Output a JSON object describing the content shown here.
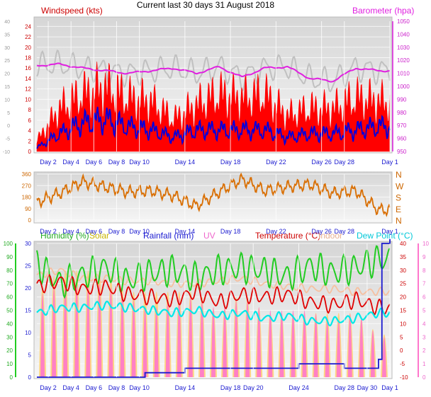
{
  "colors": {
    "wind_avg": "#0000e0",
    "wind_gust": "#ff0000",
    "pressure": "#e020e0",
    "temp_trace": "#c0c0c0",
    "direction": "#d96e00",
    "humidity": "#22cc22",
    "solar": "#e8c800",
    "rainfall": "#1a1ad0",
    "uv": "#ff77cc",
    "temperature": "#e00000",
    "indoor": "#f6c0a0",
    "dewpoint": "#00e8e8",
    "solar_fill": "#ffd070"
  },
  "chart_data": [
    {
      "type": "line",
      "title": "Current last 30 days 31 August 2018",
      "left_label": "Windspeed (kts)",
      "right_label": "Barometer (hpa)",
      "x_ticks": [
        "Day 2",
        "Day 4",
        "Day 6",
        "Day 8",
        "Day 10",
        "Day 14",
        "Day 18",
        "Day 22",
        "Day 26",
        "Day 28",
        "Day 1"
      ],
      "x_tick_days": [
        2,
        4,
        6,
        8,
        10,
        14,
        18,
        22,
        26,
        28,
        32
      ],
      "y_left_outer_ticks": [
        40,
        35,
        30,
        25,
        20,
        15,
        10,
        5,
        0,
        -5,
        -10
      ],
      "y_left_inner_ticks": [
        24,
        22,
        20,
        18,
        16,
        14,
        12,
        10,
        8,
        6,
        4,
        2,
        0
      ],
      "y_right_ticks": [
        1050,
        1040,
        1030,
        1020,
        1010,
        1000,
        990,
        980,
        970,
        960,
        950
      ],
      "ylim_left": [
        0,
        25
      ],
      "ylim_right": [
        950,
        1050
      ],
      "series": [
        {
          "name": "Wind gust",
          "x": [
            1,
            3,
            5,
            7,
            9,
            11,
            13,
            15,
            17,
            19,
            21,
            23,
            25,
            27,
            29,
            31
          ],
          "values": [
            3,
            12,
            16,
            18,
            15,
            14,
            9,
            13,
            16,
            15,
            16,
            10,
            12,
            12,
            15,
            14
          ]
        },
        {
          "name": "Wind average",
          "x": [
            1,
            3,
            5,
            7,
            9,
            11,
            13,
            15,
            17,
            19,
            21,
            23,
            25,
            27,
            29,
            31
          ],
          "values": [
            1,
            5,
            8,
            9,
            7,
            6,
            4,
            6,
            6,
            6,
            6,
            4,
            5,
            5,
            6,
            7
          ]
        },
        {
          "name": "Barometer",
          "x": [
            1,
            3,
            5,
            7,
            9,
            11,
            13,
            15,
            17,
            19,
            21,
            23,
            25,
            27,
            29,
            31
          ],
          "values": [
            1016,
            1017,
            1014,
            1012,
            1010,
            1012,
            1014,
            1010,
            1015,
            1007,
            1014,
            1015,
            1006,
            1004,
            1014,
            1012
          ]
        }
      ]
    },
    {
      "type": "line",
      "title": "",
      "x_ticks": [
        "Day 2",
        "Day 4",
        "Day 6",
        "Day 8",
        "Day 10",
        "Day 14",
        "Day 18",
        "Day 22",
        "Day 26",
        "Day 28",
        "Day 1"
      ],
      "x_tick_days": [
        2,
        4,
        6,
        8,
        10,
        14,
        18,
        22,
        26,
        28,
        32
      ],
      "y_ticks": [
        360,
        270,
        180,
        90,
        0
      ],
      "right_ticks": [
        "N",
        "W",
        "S",
        "E",
        "N"
      ],
      "ylim": [
        0,
        360
      ],
      "series": [
        {
          "name": "Wind direction",
          "x": [
            1,
            3,
            5,
            7,
            9,
            11,
            13,
            15,
            17,
            19,
            21,
            23,
            25,
            27,
            29,
            31
          ],
          "values": [
            140,
            210,
            300,
            260,
            220,
            230,
            190,
            110,
            220,
            320,
            230,
            260,
            280,
            210,
            230,
            80
          ]
        }
      ]
    },
    {
      "type": "line",
      "title": "",
      "legend": [
        "Humidity (%)",
        "Solar",
        "Rainfall (mm)",
        "UV",
        "Temperature (°C)",
        "Indoor",
        "Dew Point (°C)"
      ],
      "x_ticks": [
        "Day 2",
        "Day 4",
        "Day 6",
        "Day 8",
        "Day 10",
        "Day 14",
        "Day 18",
        "Day 20",
        "Day 24",
        "Day 28",
        "Day 30",
        "Day 1"
      ],
      "x_tick_days": [
        2,
        4,
        6,
        8,
        10,
        14,
        18,
        20,
        24,
        28,
        30,
        32
      ],
      "axis_humidity": [
        100,
        90,
        80,
        70,
        60,
        50,
        40,
        30,
        20,
        10,
        0
      ],
      "axis_rain": [
        30,
        25,
        20,
        15,
        10,
        5,
        0
      ],
      "axis_temp": [
        40,
        35,
        30,
        25,
        20,
        15,
        10,
        5,
        0,
        -5,
        -10
      ],
      "axis_uv": [
        10,
        9,
        8,
        7,
        6,
        5,
        4,
        3,
        2,
        1,
        0
      ],
      "ylim_humidity": [
        0,
        100
      ],
      "ylim_temperature": [
        -10,
        40
      ],
      "series": [
        {
          "name": "Humidity (%)",
          "x": [
            1,
            3,
            5,
            7,
            9,
            11,
            13,
            15,
            17,
            19,
            21,
            23,
            25,
            27,
            29,
            31
          ],
          "values": [
            85,
            70,
            76,
            82,
            72,
            78,
            80,
            74,
            80,
            82,
            80,
            75,
            83,
            78,
            82,
            88
          ]
        },
        {
          "name": "Temperature (°C)",
          "x": [
            1,
            3,
            5,
            7,
            9,
            11,
            13,
            15,
            17,
            19,
            21,
            23,
            25,
            27,
            29,
            31
          ],
          "values": [
            24,
            26,
            23,
            24,
            21,
            20,
            19,
            22,
            18,
            21,
            20,
            21,
            18,
            17,
            19,
            16
          ]
        },
        {
          "name": "Dew Point (°C)",
          "x": [
            1,
            3,
            5,
            7,
            9,
            11,
            13,
            15,
            17,
            19,
            21,
            23,
            25,
            27,
            29,
            31
          ],
          "values": [
            14,
            16,
            16,
            17,
            16,
            15,
            14,
            15,
            13,
            14,
            12,
            13,
            11,
            11,
            12,
            14
          ]
        },
        {
          "name": "Indoor",
          "x": [
            1,
            3,
            5,
            7,
            9,
            11,
            13,
            15,
            17,
            19,
            21,
            23,
            25,
            27,
            29,
            31
          ],
          "values": [
            28,
            30,
            27,
            27,
            26,
            26,
            25,
            25,
            26,
            27,
            25,
            24,
            23,
            23,
            22,
            22
          ]
        },
        {
          "name": "Rainfall (mm)",
          "x": [
            1,
            10,
            10.5,
            14,
            17,
            24,
            28,
            31,
            31.3,
            32
          ],
          "values": [
            0,
            0,
            1,
            2,
            2,
            3,
            2,
            4,
            30,
            31
          ]
        },
        {
          "name": "UV",
          "x": [
            1,
            3,
            5,
            7,
            9,
            11,
            13,
            15,
            17,
            19,
            21,
            23,
            25,
            27,
            29,
            31
          ],
          "values": [
            6,
            7,
            7,
            7,
            6,
            5,
            6,
            6,
            5,
            6,
            5,
            5,
            5,
            4,
            5,
            3
          ]
        },
        {
          "name": "Solar",
          "x": [
            1,
            3,
            5,
            7,
            9,
            11,
            13,
            15,
            17,
            19,
            21,
            23,
            25,
            27,
            29,
            31
          ],
          "values": [
            4,
            5,
            5,
            5,
            4,
            4,
            4,
            4,
            3,
            4,
            3,
            3,
            3,
            3,
            3,
            2
          ]
        }
      ]
    }
  ]
}
